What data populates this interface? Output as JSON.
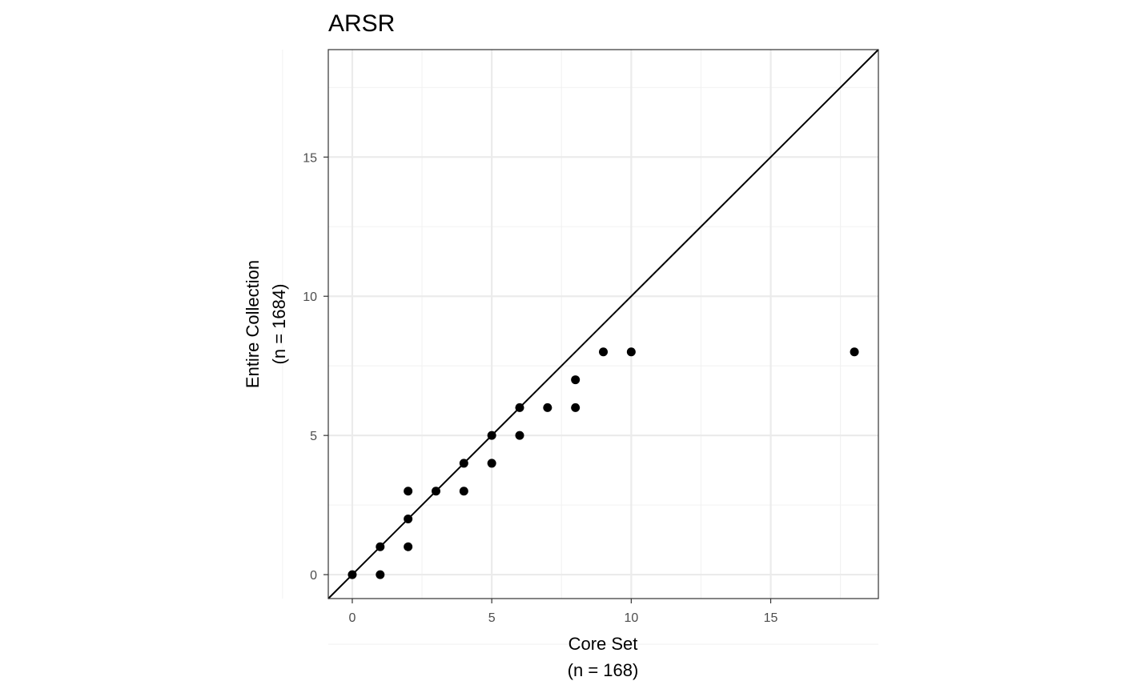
{
  "chart_data": {
    "type": "scatter",
    "title": "ARSR",
    "xlabel": [
      "Core Set",
      "(n = 168)"
    ],
    "ylabel": [
      "Entire Collection",
      "(n = 1684)"
    ],
    "xlim": [
      -0.86,
      18.86
    ],
    "ylim": [
      -0.86,
      18.86
    ],
    "xticks": [
      0,
      5,
      10,
      15
    ],
    "yticks": [
      0,
      5,
      10,
      15
    ],
    "grid": true,
    "reference_line": {
      "slope": 1,
      "intercept": 0
    },
    "points": [
      {
        "x": 0,
        "y": 0
      },
      {
        "x": 1,
        "y": 0
      },
      {
        "x": 1,
        "y": 1
      },
      {
        "x": 2,
        "y": 1
      },
      {
        "x": 2,
        "y": 2
      },
      {
        "x": 2,
        "y": 3
      },
      {
        "x": 3,
        "y": 3
      },
      {
        "x": 4,
        "y": 3
      },
      {
        "x": 4,
        "y": 4
      },
      {
        "x": 5,
        "y": 4
      },
      {
        "x": 5,
        "y": 5
      },
      {
        "x": 6,
        "y": 5
      },
      {
        "x": 6,
        "y": 6
      },
      {
        "x": 7,
        "y": 6
      },
      {
        "x": 8,
        "y": 6
      },
      {
        "x": 8,
        "y": 7
      },
      {
        "x": 9,
        "y": 8
      },
      {
        "x": 10,
        "y": 8
      },
      {
        "x": 18,
        "y": 8
      }
    ],
    "colors": {
      "point": "#000000",
      "grid_major": "#ebebeb",
      "grid_minor": "#f2f2f2",
      "panel_border": "#333333",
      "tick_text": "#4d4d4d"
    }
  }
}
